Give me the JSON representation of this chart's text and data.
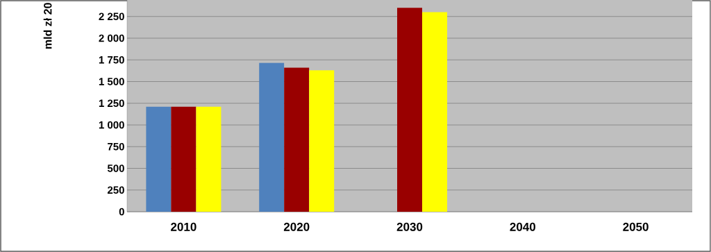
{
  "chart_data": {
    "type": "bar",
    "ylabel": "mld zł 20",
    "categories": [
      "2010",
      "2020",
      "2030",
      "2040",
      "2050"
    ],
    "series": [
      {
        "color": "#4f81bd",
        "values": [
          1210,
          1715,
          null,
          null,
          null
        ]
      },
      {
        "color": "#990000",
        "values": [
          1210,
          1660,
          2350,
          null,
          null
        ]
      },
      {
        "color": "#ffff00",
        "values": [
          1210,
          1630,
          2300,
          null,
          null
        ]
      }
    ],
    "ylim": [
      0,
      2440
    ],
    "yticks": [
      0,
      250,
      500,
      750,
      {
        "value": 1000,
        "label": "1 000"
      },
      {
        "value": 1250,
        "label": "1 250"
      },
      {
        "value": 1500,
        "label": "1 500"
      },
      {
        "value": 1750,
        "label": "1 750"
      },
      {
        "value": 2000,
        "label": "2 000"
      },
      {
        "value": 2250,
        "label": "2 250"
      }
    ],
    "grid": "y"
  }
}
